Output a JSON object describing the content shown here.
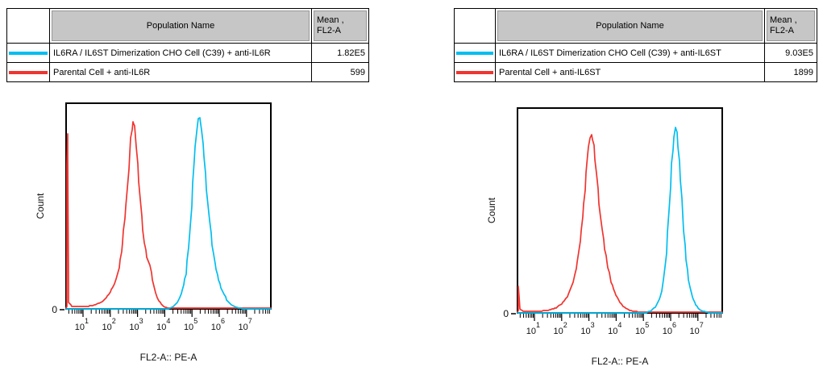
{
  "colors": {
    "cyan": "#00bef0",
    "red": "#f0342f",
    "table_header_bg": "#c6c6c6",
    "axis": "#000000",
    "background": "#ffffff"
  },
  "panels": [
    {
      "table": {
        "header_name": "Population Name",
        "header_mean_line1": "Mean ,",
        "header_mean_line2": "FL2-A",
        "rows": [
          {
            "color": "#00bef0",
            "label": "IL6RA / IL6ST Dimerization CHO Cell (C39) + anti-IL6R",
            "mean": "1.82E5"
          },
          {
            "color": "#f0342f",
            "label": "Parental Cell + anti-IL6R",
            "mean": "599"
          }
        ]
      }
    },
    {
      "table": {
        "header_name": "Population Name",
        "header_mean_line1": "Mean ,",
        "header_mean_line2": "FL2-A",
        "rows": [
          {
            "color": "#00bef0",
            "label": "IL6RA / IL6ST Dimerization CHO Cell (C39) + anti-IL6ST",
            "mean": "9.03E5"
          },
          {
            "color": "#f0342f",
            "label": "Parental Cell + anti-IL6ST",
            "mean": "1899"
          }
        ]
      }
    }
  ],
  "chart_data": [
    {
      "type": "line",
      "subtype": "flow-cytometry-histogram",
      "xlabel": "FL2-A:: PE-A",
      "ylabel": "Count",
      "x_scale": "log10",
      "x_tick_exponents": [
        1,
        2,
        3,
        4,
        5,
        6,
        7
      ],
      "x_range_log10": [
        0.38,
        7.89
      ],
      "y_tick_labels": [
        "0"
      ],
      "grid": false,
      "legend_position": "table-above",
      "series": [
        {
          "name": "IL6RA / IL6ST Dimerization CHO Cell (C39) + anti-IL6R",
          "color": "#00bef0",
          "mean_fl2a": "1.82E5",
          "peak_log10x": 5.25,
          "points_log10x_yfrac": [
            [
              0.38,
              0.0
            ],
            [
              4.15,
              0.0
            ],
            [
              4.35,
              0.015
            ],
            [
              4.5,
              0.04
            ],
            [
              4.65,
              0.09
            ],
            [
              4.78,
              0.17
            ],
            [
              4.88,
              0.3
            ],
            [
              4.98,
              0.5
            ],
            [
              5.08,
              0.72
            ],
            [
              5.16,
              0.86
            ],
            [
              5.23,
              0.925
            ],
            [
              5.28,
              0.93
            ],
            [
              5.35,
              0.87
            ],
            [
              5.44,
              0.74
            ],
            [
              5.54,
              0.58
            ],
            [
              5.64,
              0.43
            ],
            [
              5.74,
              0.31
            ],
            [
              5.85,
              0.22
            ],
            [
              5.98,
              0.14
            ],
            [
              6.12,
              0.085
            ],
            [
              6.28,
              0.045
            ],
            [
              6.45,
              0.02
            ],
            [
              6.62,
              0.008
            ],
            [
              6.8,
              0.002
            ],
            [
              7.89,
              0.0
            ]
          ]
        },
        {
          "name": "Parental Cell + anti-IL6R",
          "color": "#f0342f",
          "mean_fl2a": "599",
          "peak_log10x": 2.82,
          "points_log10x_yfrac": [
            [
              0.38,
              0.004
            ],
            [
              0.4,
              0.012
            ],
            [
              0.415,
              0.7
            ],
            [
              0.425,
              0.85
            ],
            [
              0.445,
              0.75
            ],
            [
              0.46,
              0.12
            ],
            [
              0.48,
              0.03
            ],
            [
              0.6,
              0.013
            ],
            [
              0.9,
              0.01
            ],
            [
              1.2,
              0.013
            ],
            [
              1.5,
              0.022
            ],
            [
              1.75,
              0.04
            ],
            [
              1.95,
              0.07
            ],
            [
              2.15,
              0.12
            ],
            [
              2.32,
              0.2
            ],
            [
              2.45,
              0.32
            ],
            [
              2.58,
              0.5
            ],
            [
              2.68,
              0.68
            ],
            [
              2.76,
              0.83
            ],
            [
              2.82,
              0.91
            ],
            [
              2.88,
              0.89
            ],
            [
              2.95,
              0.79
            ],
            [
              3.05,
              0.62
            ],
            [
              3.15,
              0.45
            ],
            [
              3.25,
              0.32
            ],
            [
              3.35,
              0.25
            ],
            [
              3.45,
              0.21
            ],
            [
              3.55,
              0.14
            ],
            [
              3.65,
              0.08
            ],
            [
              3.78,
              0.04
            ],
            [
              3.92,
              0.015
            ],
            [
              4.05,
              0.006
            ],
            [
              4.3,
              0.005
            ],
            [
              7.89,
              0.005
            ]
          ]
        }
      ]
    },
    {
      "type": "line",
      "subtype": "flow-cytometry-histogram",
      "xlabel": "FL2-A:: PE-A",
      "ylabel": "Count",
      "x_scale": "log10",
      "x_tick_exponents": [
        1,
        2,
        3,
        4,
        5,
        6,
        7
      ],
      "x_range_log10": [
        0.38,
        7.89
      ],
      "y_tick_labels": [
        "0"
      ],
      "grid": false,
      "legend_position": "table-above",
      "series": [
        {
          "name": "IL6RA / IL6ST Dimerization CHO Cell (C39) + anti-IL6ST",
          "color": "#00bef0",
          "mean_fl2a": "9.03E5",
          "peak_log10x": 6.18,
          "points_log10x_yfrac": [
            [
              0.38,
              0.0
            ],
            [
              5.1,
              0.0
            ],
            [
              5.3,
              0.012
            ],
            [
              5.48,
              0.035
            ],
            [
              5.62,
              0.08
            ],
            [
              5.74,
              0.16
            ],
            [
              5.84,
              0.29
            ],
            [
              5.94,
              0.5
            ],
            [
              6.04,
              0.73
            ],
            [
              6.12,
              0.86
            ],
            [
              6.18,
              0.905
            ],
            [
              6.24,
              0.88
            ],
            [
              6.32,
              0.74
            ],
            [
              6.4,
              0.56
            ],
            [
              6.48,
              0.4
            ],
            [
              6.57,
              0.26
            ],
            [
              6.66,
              0.16
            ],
            [
              6.76,
              0.095
            ],
            [
              6.88,
              0.05
            ],
            [
              7.02,
              0.022
            ],
            [
              7.18,
              0.009
            ],
            [
              7.35,
              0.002
            ],
            [
              7.89,
              0.0
            ]
          ]
        },
        {
          "name": "Parental Cell + anti-IL6ST",
          "color": "#f0342f",
          "mean_fl2a": "1899",
          "peak_log10x": 3.1,
          "points_log10x_yfrac": [
            [
              0.38,
              0.004
            ],
            [
              0.4,
              0.01
            ],
            [
              0.42,
              0.13
            ],
            [
              0.44,
              0.08
            ],
            [
              0.46,
              0.02
            ],
            [
              0.6,
              0.007
            ],
            [
              1.1,
              0.007
            ],
            [
              1.5,
              0.012
            ],
            [
              1.8,
              0.025
            ],
            [
              2.05,
              0.05
            ],
            [
              2.25,
              0.09
            ],
            [
              2.42,
              0.15
            ],
            [
              2.58,
              0.25
            ],
            [
              2.72,
              0.4
            ],
            [
              2.85,
              0.6
            ],
            [
              2.95,
              0.77
            ],
            [
              3.03,
              0.855
            ],
            [
              3.1,
              0.87
            ],
            [
              3.18,
              0.82
            ],
            [
              3.28,
              0.68
            ],
            [
              3.38,
              0.53
            ],
            [
              3.48,
              0.41
            ],
            [
              3.58,
              0.31
            ],
            [
              3.7,
              0.22
            ],
            [
              3.82,
              0.15
            ],
            [
              3.95,
              0.1
            ],
            [
              4.1,
              0.06
            ],
            [
              4.25,
              0.033
            ],
            [
              4.45,
              0.015
            ],
            [
              4.65,
              0.007
            ],
            [
              4.9,
              0.005
            ],
            [
              7.89,
              0.005
            ]
          ]
        }
      ]
    }
  ]
}
